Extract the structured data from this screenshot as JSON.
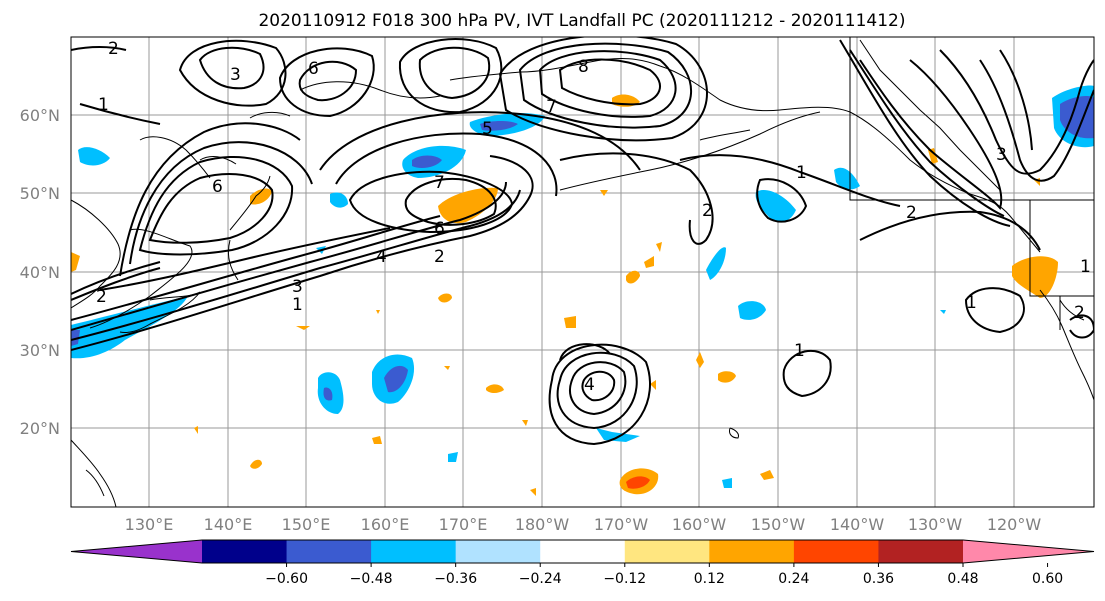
{
  "title": "2020110912 F018 300 hPa PV, IVT Landfall PC (2020111212 - 2020111412)",
  "lat_labels": [
    "60°N",
    "50°N",
    "40°N",
    "30°N",
    "20°N"
  ],
  "lon_labels": [
    "130°E",
    "140°E",
    "150°E",
    "160°E",
    "170°E",
    "180°W",
    "170°W",
    "160°W",
    "150°W",
    "140°W",
    "130°W",
    "120°W"
  ],
  "colorbar": {
    "ticks": [
      "−0.60",
      "−0.48",
      "−0.36",
      "−0.24",
      "−0.12",
      "0.12",
      "0.24",
      "0.36",
      "0.48",
      "0.60"
    ],
    "colors": [
      "#9932CC",
      "#00008B",
      "#3B5BD0",
      "#00BFFF",
      "#B0E2FF",
      "#FFFFFF",
      "#FFE680",
      "#FFA500",
      "#FF4500",
      "#B22222",
      "#FF88AA"
    ]
  },
  "contour_labels": [
    "2",
    "3",
    "1",
    "6",
    "2",
    "1",
    "3",
    "4",
    "2",
    "6",
    "7",
    "5",
    "7",
    "8",
    "1",
    "2",
    "1",
    "4",
    "1",
    "3",
    "2",
    "6",
    "1",
    "2"
  ]
}
